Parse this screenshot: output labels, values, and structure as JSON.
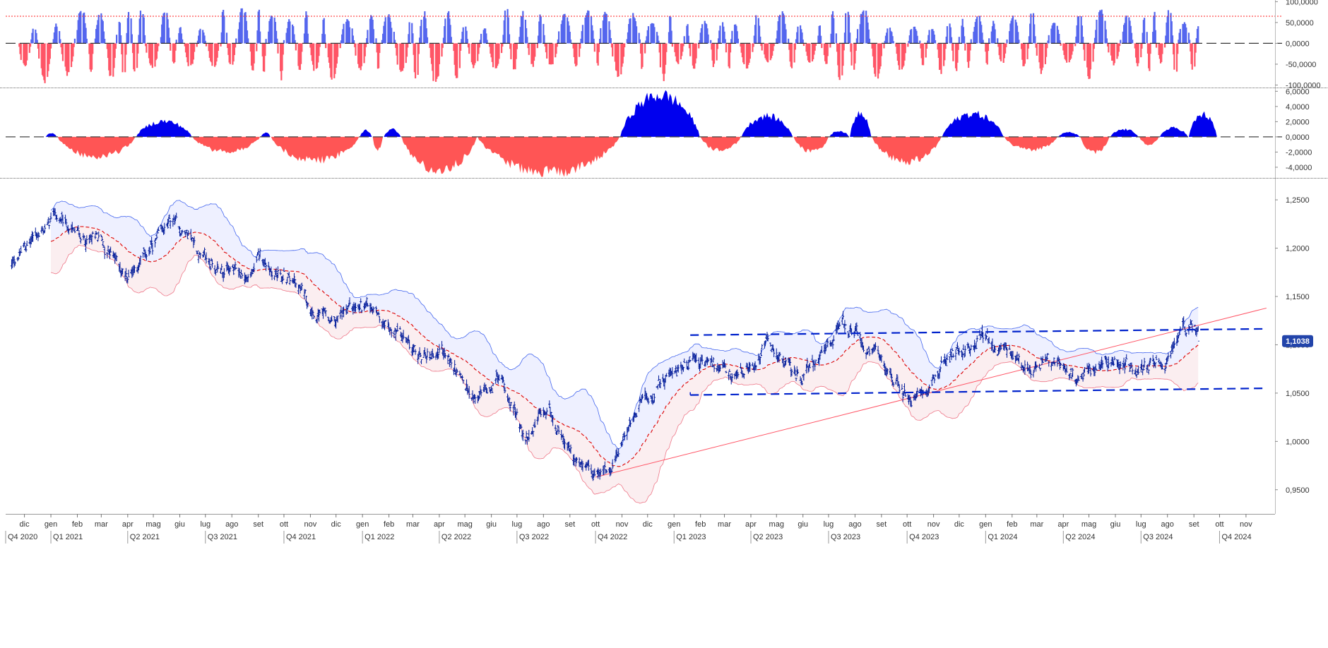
{
  "colors": {
    "osc_pos": "#5566ee",
    "osc_neg": "#ff5566",
    "mom_pos": "#0000ee",
    "mom_neg": "#ff5555",
    "candles": "#001a99",
    "band_line": "#4466ee",
    "band_fill": "#eef0ff",
    "lower_band": "#ee7788",
    "ma": "#dd0000",
    "channel": "#0022cc",
    "trendline": "#ff5566",
    "threshold": "#ff2222",
    "price_badge": "#2244aa"
  },
  "chart_data": [
    {
      "type": "bar",
      "role": "oscillator",
      "ytick_labels": [
        "100,0000",
        "50,0000",
        "0,0000",
        "-50,0000",
        "-100,0000"
      ],
      "ytick_values": [
        100,
        50,
        0,
        -50,
        -100
      ],
      "ylim": [
        -106,
        104
      ],
      "threshold_level": 65,
      "zero_line": "dashed",
      "values_note_pattern": "alternating positive/negative spikes"
    },
    {
      "type": "area",
      "role": "momentum",
      "ytick_labels": [
        "6,0000",
        "4,0000",
        "2,0000",
        "0,0000",
        "-2,0000",
        "-4,0000"
      ],
      "ytick_values": [
        6,
        4,
        2,
        0,
        -2,
        -4
      ],
      "ylim": [
        -5.4,
        6.4
      ],
      "zero_line": "dashed",
      "segments": [
        {
          "start": "2020-12-26",
          "end": "2021-01-08",
          "value": 0.5
        },
        {
          "start": "2021-01-09",
          "end": "2021-04-10",
          "value": -2.7
        },
        {
          "start": "2021-04-11",
          "end": "2021-06-15",
          "value": 2.1
        },
        {
          "start": "2021-06-16",
          "end": "2021-09-03",
          "value": -2.0
        },
        {
          "start": "2021-09-04",
          "end": "2021-09-15",
          "value": 0.6
        },
        {
          "start": "2021-09-16",
          "end": "2021-12-28",
          "value": -3.2
        },
        {
          "start": "2021-12-29",
          "end": "2022-01-12",
          "value": 0.9
        },
        {
          "start": "2022-01-13",
          "end": "2022-01-25",
          "value": -1.8
        },
        {
          "start": "2022-01-26",
          "end": "2022-02-15",
          "value": 1.0
        },
        {
          "start": "2022-02-16",
          "end": "2022-05-15",
          "value": -4.5
        },
        {
          "start": "2022-05-16",
          "end": "2022-10-29",
          "value": -4.8
        },
        {
          "start": "2022-10-30",
          "end": "2023-01-31",
          "value": 5.6
        },
        {
          "start": "2023-02-01",
          "end": "2023-03-20",
          "value": -1.8
        },
        {
          "start": "2023-03-21",
          "end": "2023-05-20",
          "value": 2.8
        },
        {
          "start": "2023-05-21",
          "end": "2023-07-01",
          "value": -2.0
        },
        {
          "start": "2023-07-02",
          "end": "2023-07-25",
          "value": 0.8
        },
        {
          "start": "2023-07-26",
          "end": "2023-08-20",
          "value": 3.3
        },
        {
          "start": "2023-08-21",
          "end": "2023-11-10",
          "value": -3.3
        },
        {
          "start": "2023-11-11",
          "end": "2024-01-22",
          "value": 3.1
        },
        {
          "start": "2024-01-23",
          "end": "2024-03-25",
          "value": -1.8
        },
        {
          "start": "2024-03-26",
          "end": "2024-04-20",
          "value": 0.6
        },
        {
          "start": "2024-04-21",
          "end": "2024-05-25",
          "value": -2.0
        },
        {
          "start": "2024-05-26",
          "end": "2024-06-28",
          "value": 1.0
        },
        {
          "start": "2024-06-29",
          "end": "2024-07-22",
          "value": -1.0
        },
        {
          "start": "2024-07-23",
          "end": "2024-08-25",
          "value": 1.2
        },
        {
          "start": "2024-08-26",
          "end": "2024-09-28",
          "value": 3.0
        }
      ]
    },
    {
      "type": "candlestick",
      "role": "price",
      "ytick_labels": [
        "1,2500",
        "1,2000",
        "1,1500",
        "1,1000",
        "1,0500",
        "1,0000",
        "0,9500"
      ],
      "ytick_values": [
        1.25,
        1.2,
        1.15,
        1.1,
        1.05,
        1.0,
        0.95
      ],
      "ylim": [
        0.925,
        1.272
      ],
      "last_price": 1.1038,
      "last_price_label": "1,1038",
      "price_path": [
        [
          "2020-11-15",
          1.18
        ],
        [
          "2020-12-05",
          1.205
        ],
        [
          "2021-01-06",
          1.232
        ],
        [
          "2021-02-01",
          1.212
        ],
        [
          "2021-03-01",
          1.205
        ],
        [
          "2021-03-31",
          1.172
        ],
        [
          "2021-05-25",
          1.225
        ],
        [
          "2021-06-15",
          1.212
        ],
        [
          "2021-07-01",
          1.185
        ],
        [
          "2021-08-20",
          1.168
        ],
        [
          "2021-09-03",
          1.188
        ],
        [
          "2021-10-15",
          1.16
        ],
        [
          "2021-11-24",
          1.122
        ],
        [
          "2022-01-14",
          1.143
        ],
        [
          "2022-03-07",
          1.085
        ],
        [
          "2022-04-04",
          1.096
        ],
        [
          "2022-05-12",
          1.037
        ],
        [
          "2022-06-10",
          1.072
        ],
        [
          "2022-07-14",
          1.0
        ],
        [
          "2022-08-10",
          1.032
        ],
        [
          "2022-08-24",
          0.995
        ],
        [
          "2022-09-28",
          0.956
        ],
        [
          "2022-10-20",
          0.978
        ],
        [
          "2022-11-25",
          1.04
        ],
        [
          "2023-01-26",
          1.09
        ],
        [
          "2023-03-15",
          1.058
        ],
        [
          "2023-04-20",
          1.1
        ],
        [
          "2023-05-31",
          1.066
        ],
        [
          "2023-07-18",
          1.122
        ],
        [
          "2023-10-03",
          1.046
        ],
        [
          "2023-11-15",
          1.085
        ],
        [
          "2023-12-28",
          1.11
        ],
        [
          "2024-02-15",
          1.072
        ],
        [
          "2024-03-08",
          1.093
        ],
        [
          "2024-04-16",
          1.062
        ],
        [
          "2024-06-05",
          1.088
        ],
        [
          "2024-06-26",
          1.067
        ],
        [
          "2024-08-01",
          1.08
        ],
        [
          "2024-08-26",
          1.118
        ],
        [
          "2024-09-06",
          1.11
        ]
      ],
      "channel_upper": [
        [
          "2023-01-20",
          1.11
        ],
        [
          "2024-11-25",
          1.1165
        ]
      ],
      "channel_lower": [
        [
          "2023-01-20",
          1.048
        ],
        [
          "2024-11-25",
          1.055
        ]
      ],
      "trendline": [
        [
          "2022-10-01",
          0.963
        ],
        [
          "2024-11-25",
          1.138
        ]
      ],
      "band_start": "2021-01-01"
    }
  ],
  "x_axis": {
    "months": [
      {
        "label": "dic",
        "date": "2020-12-01"
      },
      {
        "label": "gen",
        "date": "2021-01-01"
      },
      {
        "label": "feb",
        "date": "2021-02-01"
      },
      {
        "label": "mar",
        "date": "2021-03-01"
      },
      {
        "label": "apr",
        "date": "2021-04-01"
      },
      {
        "label": "mag",
        "date": "2021-05-01"
      },
      {
        "label": "giu",
        "date": "2021-06-01"
      },
      {
        "label": "lug",
        "date": "2021-07-01"
      },
      {
        "label": "ago",
        "date": "2021-08-01"
      },
      {
        "label": "set",
        "date": "2021-09-01"
      },
      {
        "label": "ott",
        "date": "2021-10-01"
      },
      {
        "label": "nov",
        "date": "2021-11-01"
      },
      {
        "label": "dic",
        "date": "2021-12-01"
      },
      {
        "label": "gen",
        "date": "2022-01-01"
      },
      {
        "label": "feb",
        "date": "2022-02-01"
      },
      {
        "label": "mar",
        "date": "2022-03-01"
      },
      {
        "label": "apr",
        "date": "2022-04-01"
      },
      {
        "label": "mag",
        "date": "2022-05-01"
      },
      {
        "label": "giu",
        "date": "2022-06-01"
      },
      {
        "label": "lug",
        "date": "2022-07-01"
      },
      {
        "label": "ago",
        "date": "2022-08-01"
      },
      {
        "label": "set",
        "date": "2022-09-01"
      },
      {
        "label": "ott",
        "date": "2022-10-01"
      },
      {
        "label": "nov",
        "date": "2022-11-01"
      },
      {
        "label": "dic",
        "date": "2022-12-01"
      },
      {
        "label": "gen",
        "date": "2023-01-01"
      },
      {
        "label": "feb",
        "date": "2023-02-01"
      },
      {
        "label": "mar",
        "date": "2023-03-01"
      },
      {
        "label": "apr",
        "date": "2023-04-01"
      },
      {
        "label": "mag",
        "date": "2023-05-01"
      },
      {
        "label": "giu",
        "date": "2023-06-01"
      },
      {
        "label": "lug",
        "date": "2023-07-01"
      },
      {
        "label": "ago",
        "date": "2023-08-01"
      },
      {
        "label": "set",
        "date": "2023-09-01"
      },
      {
        "label": "ott",
        "date": "2023-10-01"
      },
      {
        "label": "nov",
        "date": "2023-11-01"
      },
      {
        "label": "dic",
        "date": "2023-12-01"
      },
      {
        "label": "gen",
        "date": "2024-01-01"
      },
      {
        "label": "feb",
        "date": "2024-02-01"
      },
      {
        "label": "mar",
        "date": "2024-03-01"
      },
      {
        "label": "apr",
        "date": "2024-04-01"
      },
      {
        "label": "mag",
        "date": "2024-05-01"
      },
      {
        "label": "giu",
        "date": "2024-06-01"
      },
      {
        "label": "lug",
        "date": "2024-07-01"
      },
      {
        "label": "ago",
        "date": "2024-08-01"
      },
      {
        "label": "set",
        "date": "2024-09-01"
      },
      {
        "label": "ott",
        "date": "2024-10-01"
      },
      {
        "label": "nov",
        "date": "2024-11-01"
      }
    ],
    "quarters": [
      {
        "label": "Q4 2020",
        "date": "2020-10-01"
      },
      {
        "label": "Q1 2021",
        "date": "2021-01-01"
      },
      {
        "label": "Q2 2021",
        "date": "2021-04-01"
      },
      {
        "label": "Q3 2021",
        "date": "2021-07-01"
      },
      {
        "label": "Q4 2021",
        "date": "2021-10-01"
      },
      {
        "label": "Q1 2022",
        "date": "2022-01-01"
      },
      {
        "label": "Q2 2022",
        "date": "2022-04-01"
      },
      {
        "label": "Q3 2022",
        "date": "2022-07-01"
      },
      {
        "label": "Q4 2022",
        "date": "2022-10-01"
      },
      {
        "label": "Q1 2023",
        "date": "2023-01-01"
      },
      {
        "label": "Q2 2023",
        "date": "2023-04-01"
      },
      {
        "label": "Q3 2023",
        "date": "2023-07-01"
      },
      {
        "label": "Q4 2023",
        "date": "2023-10-01"
      },
      {
        "label": "Q1 2024",
        "date": "2024-01-01"
      },
      {
        "label": "Q2 2024",
        "date": "2024-04-01"
      },
      {
        "label": "Q3 2024",
        "date": "2024-07-01"
      },
      {
        "label": "Q4 2024",
        "date": "2024-10-01"
      }
    ],
    "range": [
      "2020-11-09",
      "2024-12-05"
    ]
  }
}
